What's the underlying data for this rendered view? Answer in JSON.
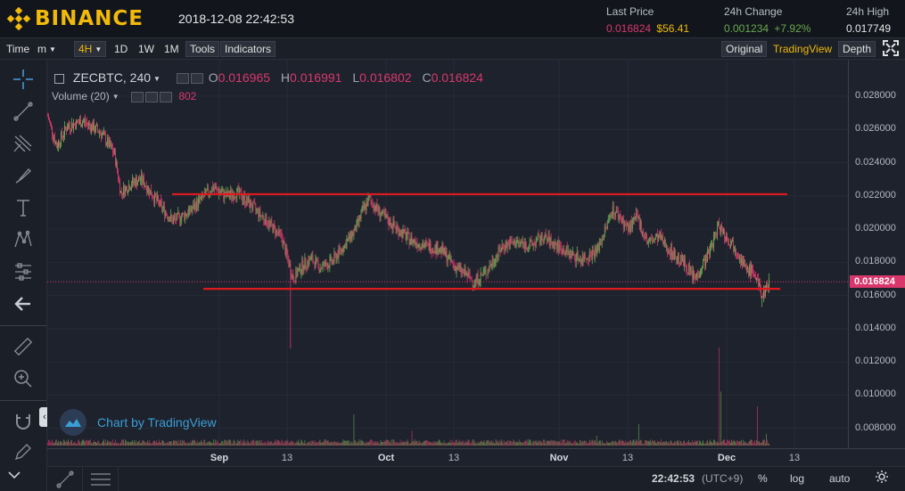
{
  "header": {
    "logo_text": "BINANCE",
    "datetime": "2018-12-08 22:42:53",
    "last_price": {
      "label": "Last Price",
      "value": "0.016824",
      "usd": "$56.41"
    },
    "change": {
      "label": "24h Change",
      "value": "0.001234",
      "percent": "+7.92%"
    },
    "high": {
      "label": "24h High",
      "value": "0.017749"
    }
  },
  "toolbar": {
    "time_label": "Time",
    "minute_label": "m",
    "interval_active": "4H",
    "intervals": [
      "1D",
      "1W",
      "1M"
    ],
    "tools_label": "Tools",
    "indicators_label": "Indicators",
    "view_original": "Original",
    "view_tradingview": "TradingView",
    "view_depth": "Depth"
  },
  "legend": {
    "symbol": "ZECBTC, 240",
    "o_label": "O",
    "o_value": "0.016965",
    "h_label": "H",
    "h_value": "0.016991",
    "l_label": "L",
    "l_value": "0.016802",
    "c_label": "C",
    "c_value": "0.016824",
    "volume_label": "Volume (20)",
    "volume_value": "802"
  },
  "watermark": "Chart by TradingView",
  "icons": [
    "crosshair-icon",
    "trendline-icon",
    "pitchfork-icon",
    "brush-icon",
    "text-icon",
    "pattern-icon",
    "prediction-icon",
    "back-arrow-icon",
    "ruler-icon",
    "zoom-icon",
    "magnet-icon",
    "pencil-lock-icon",
    "fullscreen-icon",
    "settings-gear-icon"
  ],
  "colors": {
    "up": "#6aa84f",
    "down": "#d9376c",
    "accent": "#f0b90b",
    "level_line": "#e0191f"
  },
  "bottombar": {
    "time": "22:42:53",
    "tz": "(UTC+9)",
    "percent_label": "%",
    "log_label": "log",
    "auto_label": "auto"
  },
  "chart_data": {
    "type": "candlestick",
    "y_axis_ticks": [
      "0.028000",
      "0.026000",
      "0.024000",
      "0.022000",
      "0.020000",
      "0.018000",
      "0.016000",
      "0.014000",
      "0.012000",
      "0.010000",
      "0.008000"
    ],
    "x_axis_ticks": [
      "Sep",
      "13",
      "Oct",
      "13",
      "Nov",
      "13",
      "Dec",
      "13"
    ],
    "x_axis_bold": [
      "Sep",
      "Oct",
      "Nov",
      "Dec"
    ],
    "current_price_label": "0.016824",
    "ylim": [
      0.0068,
      0.0302
    ],
    "current_price": 0.016824,
    "resistance_level": 0.0221,
    "support_level": 0.0164,
    "close_path": [
      [
        0.0268,
        0
      ],
      [
        0.025,
        10
      ],
      [
        0.0262,
        22
      ],
      [
        0.0265,
        40
      ],
      [
        0.0258,
        60
      ],
      [
        0.0245,
        75
      ],
      [
        0.0222,
        82
      ],
      [
        0.0228,
        95
      ],
      [
        0.023,
        105
      ],
      [
        0.0215,
        125
      ],
      [
        0.0205,
        140
      ],
      [
        0.021,
        158
      ],
      [
        0.0218,
        172
      ],
      [
        0.0225,
        185
      ],
      [
        0.022,
        200
      ],
      [
        0.0222,
        212
      ],
      [
        0.0216,
        225
      ],
      [
        0.0205,
        245
      ],
      [
        0.0195,
        262
      ],
      [
        0.017,
        275
      ],
      [
        0.0178,
        285
      ],
      [
        0.0182,
        295
      ],
      [
        0.0177,
        305
      ],
      [
        0.018,
        318
      ],
      [
        0.019,
        332
      ],
      [
        0.02,
        345
      ],
      [
        0.021,
        352
      ],
      [
        0.0218,
        360
      ],
      [
        0.0208,
        375
      ],
      [
        0.02,
        392
      ],
      [
        0.0194,
        405
      ],
      [
        0.019,
        422
      ],
      [
        0.0188,
        440
      ],
      [
        0.0178,
        455
      ],
      [
        0.0172,
        470
      ],
      [
        0.0168,
        478
      ],
      [
        0.0175,
        492
      ],
      [
        0.019,
        510
      ],
      [
        0.0192,
        525
      ],
      [
        0.019,
        540
      ],
      [
        0.0195,
        555
      ],
      [
        0.019,
        570
      ],
      [
        0.0185,
        585
      ],
      [
        0.0182,
        598
      ],
      [
        0.0187,
        615
      ],
      [
        0.02,
        625
      ],
      [
        0.0212,
        632
      ],
      [
        0.0208,
        640
      ],
      [
        0.02,
        650
      ],
      [
        0.0207,
        660
      ],
      [
        0.0192,
        672
      ],
      [
        0.0195,
        685
      ],
      [
        0.0185,
        700
      ],
      [
        0.018,
        712
      ],
      [
        0.017,
        725
      ],
      [
        0.0185,
        740
      ],
      [
        0.0203,
        752
      ],
      [
        0.0195,
        760
      ],
      [
        0.0188,
        772
      ],
      [
        0.0175,
        782
      ],
      [
        0.0175,
        790
      ],
      [
        0.016,
        800
      ],
      [
        0.0168,
        808
      ]
    ],
    "volume_spikes": [
      [
        343,
        0.32
      ],
      [
        408,
        0.15
      ],
      [
        615,
        0.1
      ],
      [
        662,
        0.22
      ],
      [
        752,
        1.0
      ],
      [
        754,
        0.55
      ],
      [
        795,
        0.4
      ],
      [
        805,
        0.12
      ]
    ]
  }
}
